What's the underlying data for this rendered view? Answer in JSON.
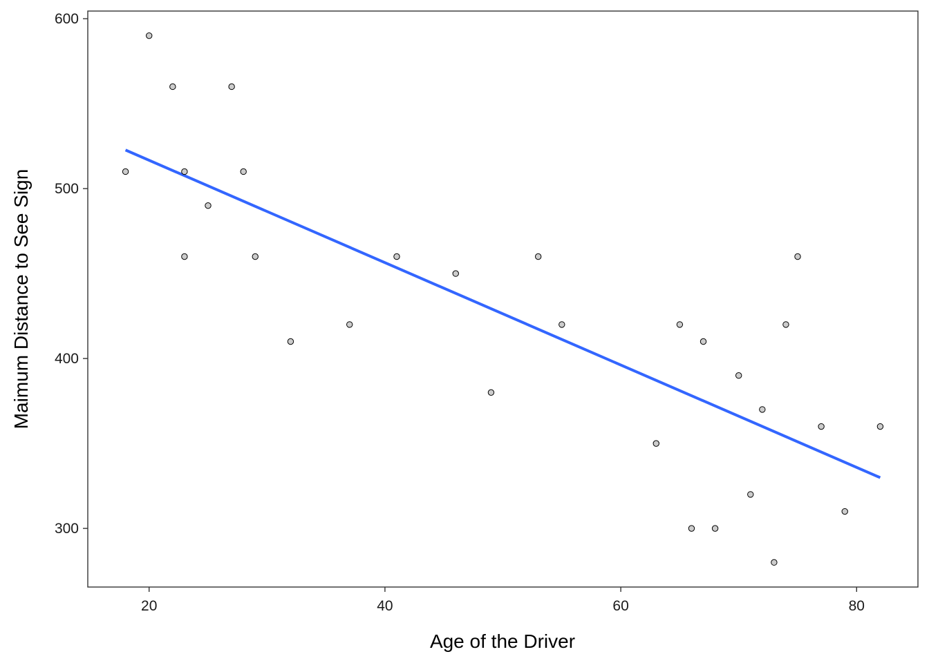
{
  "chart_data": {
    "type": "scatter",
    "title": "",
    "xlabel": "Age of the Driver",
    "ylabel": "Maimum Distance to See Sign",
    "xlim": [
      14.8,
      85.2
    ],
    "ylim": [
      265.5,
      604.5
    ],
    "x_ticks": [
      20,
      40,
      60,
      80
    ],
    "y_ticks": [
      300,
      400,
      500,
      600
    ],
    "grid": false,
    "legend": "none",
    "colors": {
      "point_fill": "#cccccc",
      "point_stroke": "#000000",
      "trend_line": "#3366ff"
    },
    "series": [
      {
        "type": "scatter",
        "x": [
          18,
          20,
          22,
          23,
          23,
          25,
          27,
          28,
          29,
          32,
          37,
          41,
          46,
          49,
          53,
          55,
          63,
          65,
          66,
          67,
          68,
          70,
          71,
          72,
          73,
          74,
          75,
          77,
          79,
          82
        ],
        "y": [
          510,
          590,
          560,
          510,
          460,
          490,
          560,
          510,
          460,
          410,
          420,
          460,
          450,
          380,
          460,
          420,
          350,
          420,
          300,
          410,
          300,
          390,
          320,
          370,
          280,
          420,
          460,
          360,
          310,
          360
        ]
      },
      {
        "type": "line",
        "x": [
          18,
          82
        ],
        "y": [
          522.7,
          329.9
        ]
      }
    ]
  }
}
